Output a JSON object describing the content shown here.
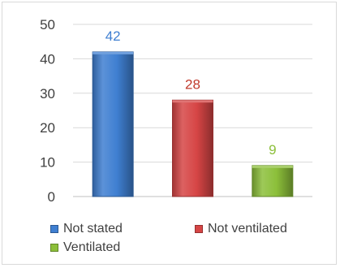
{
  "chart_data": {
    "type": "bar",
    "title": "",
    "xlabel": "",
    "ylabel": "",
    "categories": [
      "Not stated",
      "Not ventilated",
      "Ventilated"
    ],
    "values": [
      42,
      28,
      9
    ],
    "ylim": [
      0,
      50
    ],
    "yticks": [
      "0",
      "10",
      "20",
      "30",
      "40",
      "50"
    ],
    "grid": true,
    "legend_position": "bottom",
    "series": [
      {
        "name": "Not stated",
        "value": 42,
        "color": "#3f7fd1",
        "label_color": "#3f7fd1"
      },
      {
        "name": "Not ventilated",
        "value": 28,
        "color": "#d64545",
        "label_color": "#c0392b"
      },
      {
        "name": "Ventilated",
        "value": 9,
        "color": "#8cbf3a",
        "label_color": "#8cbf3a"
      }
    ]
  }
}
